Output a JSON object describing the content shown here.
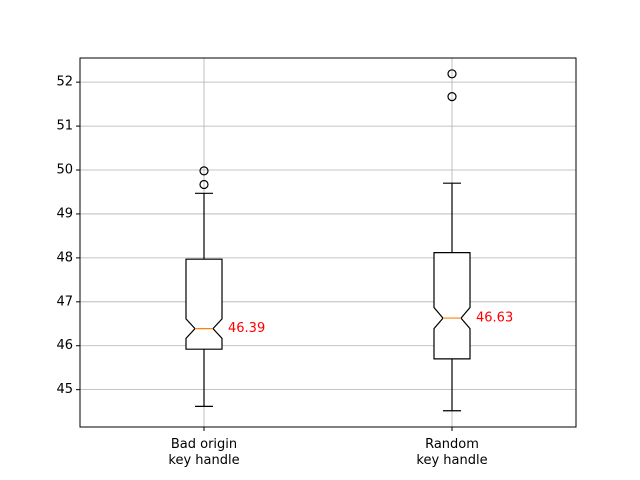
{
  "chart_data": {
    "type": "boxplot",
    "notched": true,
    "grid": true,
    "ylim": [
      44.15,
      52.55
    ],
    "yticks": [
      45,
      46,
      47,
      48,
      49,
      50,
      51,
      52
    ],
    "series": [
      {
        "category_lines": [
          "Bad origin",
          "key handle"
        ],
        "whisker_low": 44.62,
        "q1": 45.92,
        "median": 46.39,
        "q3": 47.97,
        "whisker_high": 49.47,
        "notch_low": 46.17,
        "notch_high": 46.61,
        "outliers": [
          49.67,
          49.98
        ],
        "median_label": "46.39"
      },
      {
        "category_lines": [
          "Random",
          "key handle"
        ],
        "whisker_low": 44.52,
        "q1": 45.7,
        "median": 46.63,
        "q3": 48.12,
        "whisker_high": 49.7,
        "notch_low": 46.39,
        "notch_high": 46.87,
        "outliers": [
          51.67,
          52.19
        ],
        "median_label": "46.63"
      }
    ],
    "colors": {
      "box": "#000000",
      "median_line": "#ff7f0e",
      "median_label": "#ff0000",
      "grid": "#b0b0b0"
    }
  }
}
